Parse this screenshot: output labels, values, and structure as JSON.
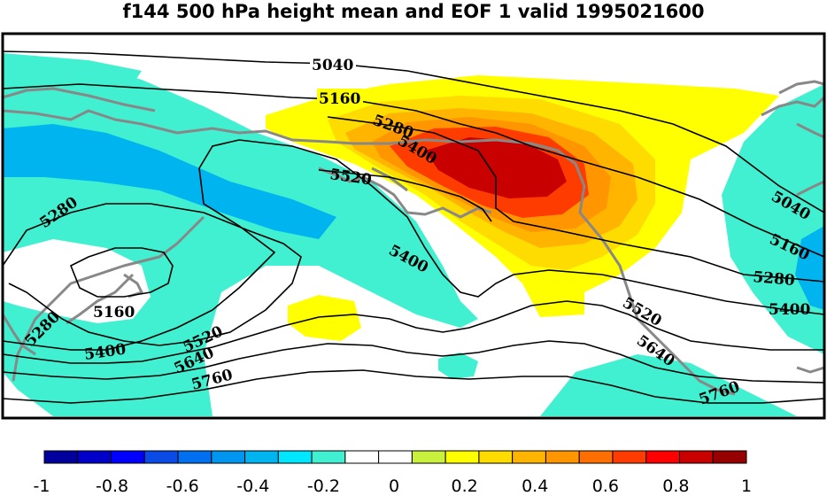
{
  "title": "f144 500 hPa height mean and EOF 1 valid 1995021600",
  "contour_labels": [
    "5040",
    "5160",
    "5280",
    "5400",
    "5520",
    "5280",
    "5160",
    "5280",
    "5400",
    "5520",
    "5640",
    "5760",
    "5040",
    "5160",
    "5280",
    "5400",
    "5520",
    "5640",
    "5760"
  ],
  "colorbar": {
    "ticks": [
      "-1",
      "-0.8",
      "-0.6",
      "-0.4",
      "-0.2",
      "0",
      "0.2",
      "0.4",
      "0.6",
      "0.8",
      "1"
    ],
    "colors": [
      "#00009c",
      "#0000c8",
      "#0000ff",
      "#0a4be6",
      "#0070f0",
      "#0096f0",
      "#00b4f0",
      "#00e6ff",
      "#40f0d0",
      "#ffffff",
      "#ffffff",
      "#c8f03c",
      "#ffff00",
      "#ffdc00",
      "#ffb400",
      "#ff9600",
      "#ff6e00",
      "#ff3c00",
      "#ff0000",
      "#c80000",
      "#960000"
    ]
  },
  "colors": {
    "coastline": "#888888",
    "contour": "#000000",
    "frame": "#000000"
  }
}
